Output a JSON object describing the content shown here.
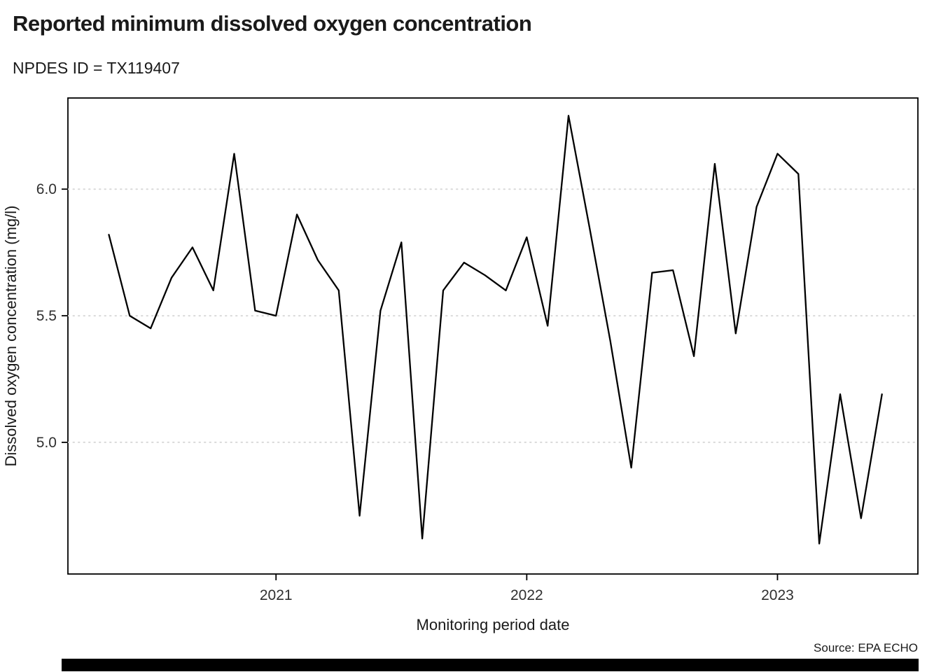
{
  "chart_data": {
    "type": "line",
    "title": "Reported minimum dissolved oxygen concentration",
    "subtitle": "NPDES ID = TX119407",
    "xlabel": "Monitoring period date",
    "ylabel": "Dissolved oxygen concentration (mg/l)",
    "source": "Source: EPA ECHO",
    "legend": "none",
    "grid": "horizontal-dotted",
    "line_color": "#000000",
    "grid_color": "#d9d9d9",
    "border_color": "#000000",
    "tick_label_color": "#303030",
    "xlim": [
      2020.17,
      2023.56
    ],
    "ylim": [
      4.48,
      6.36
    ],
    "x_ticks": [
      {
        "value": 2021,
        "label": "2021"
      },
      {
        "value": 2022,
        "label": "2022"
      },
      {
        "value": 2023,
        "label": "2023"
      }
    ],
    "y_ticks": [
      {
        "value": 5.0,
        "label": "5.0"
      },
      {
        "value": 5.5,
        "label": "5.5"
      },
      {
        "value": 6.0,
        "label": "6.0"
      }
    ],
    "points": [
      {
        "date": "2020-05",
        "value": 5.82
      },
      {
        "date": "2020-06",
        "value": 5.5
      },
      {
        "date": "2020-07",
        "value": 5.45
      },
      {
        "date": "2020-08",
        "value": 5.65
      },
      {
        "date": "2020-09",
        "value": 5.77
      },
      {
        "date": "2020-10",
        "value": 5.6
      },
      {
        "date": "2020-11",
        "value": 6.14
      },
      {
        "date": "2020-12",
        "value": 5.52
      },
      {
        "date": "2021-01",
        "value": 5.5
      },
      {
        "date": "2021-02",
        "value": 5.9
      },
      {
        "date": "2021-03",
        "value": 5.72
      },
      {
        "date": "2021-04",
        "value": 5.6
      },
      {
        "date": "2021-05",
        "value": 4.71
      },
      {
        "date": "2021-06",
        "value": 5.52
      },
      {
        "date": "2021-07",
        "value": 5.79
      },
      {
        "date": "2021-08",
        "value": 4.62
      },
      {
        "date": "2021-09",
        "value": 5.6
      },
      {
        "date": "2021-10",
        "value": 5.71
      },
      {
        "date": "2021-11",
        "value": 5.66
      },
      {
        "date": "2021-12",
        "value": 5.6
      },
      {
        "date": "2022-01",
        "value": 5.81
      },
      {
        "date": "2022-02",
        "value": 5.46
      },
      {
        "date": "2022-03",
        "value": 6.29
      },
      {
        "date": "2022-04",
        "value": 5.85
      },
      {
        "date": "2022-05",
        "value": 5.4
      },
      {
        "date": "2022-06",
        "value": 4.9
      },
      {
        "date": "2022-07",
        "value": 5.67
      },
      {
        "date": "2022-08",
        "value": 5.68
      },
      {
        "date": "2022-09",
        "value": 5.34
      },
      {
        "date": "2022-10",
        "value": 6.1
      },
      {
        "date": "2022-11",
        "value": 5.43
      },
      {
        "date": "2022-12",
        "value": 5.93
      },
      {
        "date": "2023-01",
        "value": 6.14
      },
      {
        "date": "2023-02",
        "value": 6.06
      },
      {
        "date": "2023-03",
        "value": 4.6
      },
      {
        "date": "2023-04",
        "value": 5.19
      },
      {
        "date": "2023-05",
        "value": 4.7
      },
      {
        "date": "2023-06",
        "value": 5.19
      }
    ]
  }
}
